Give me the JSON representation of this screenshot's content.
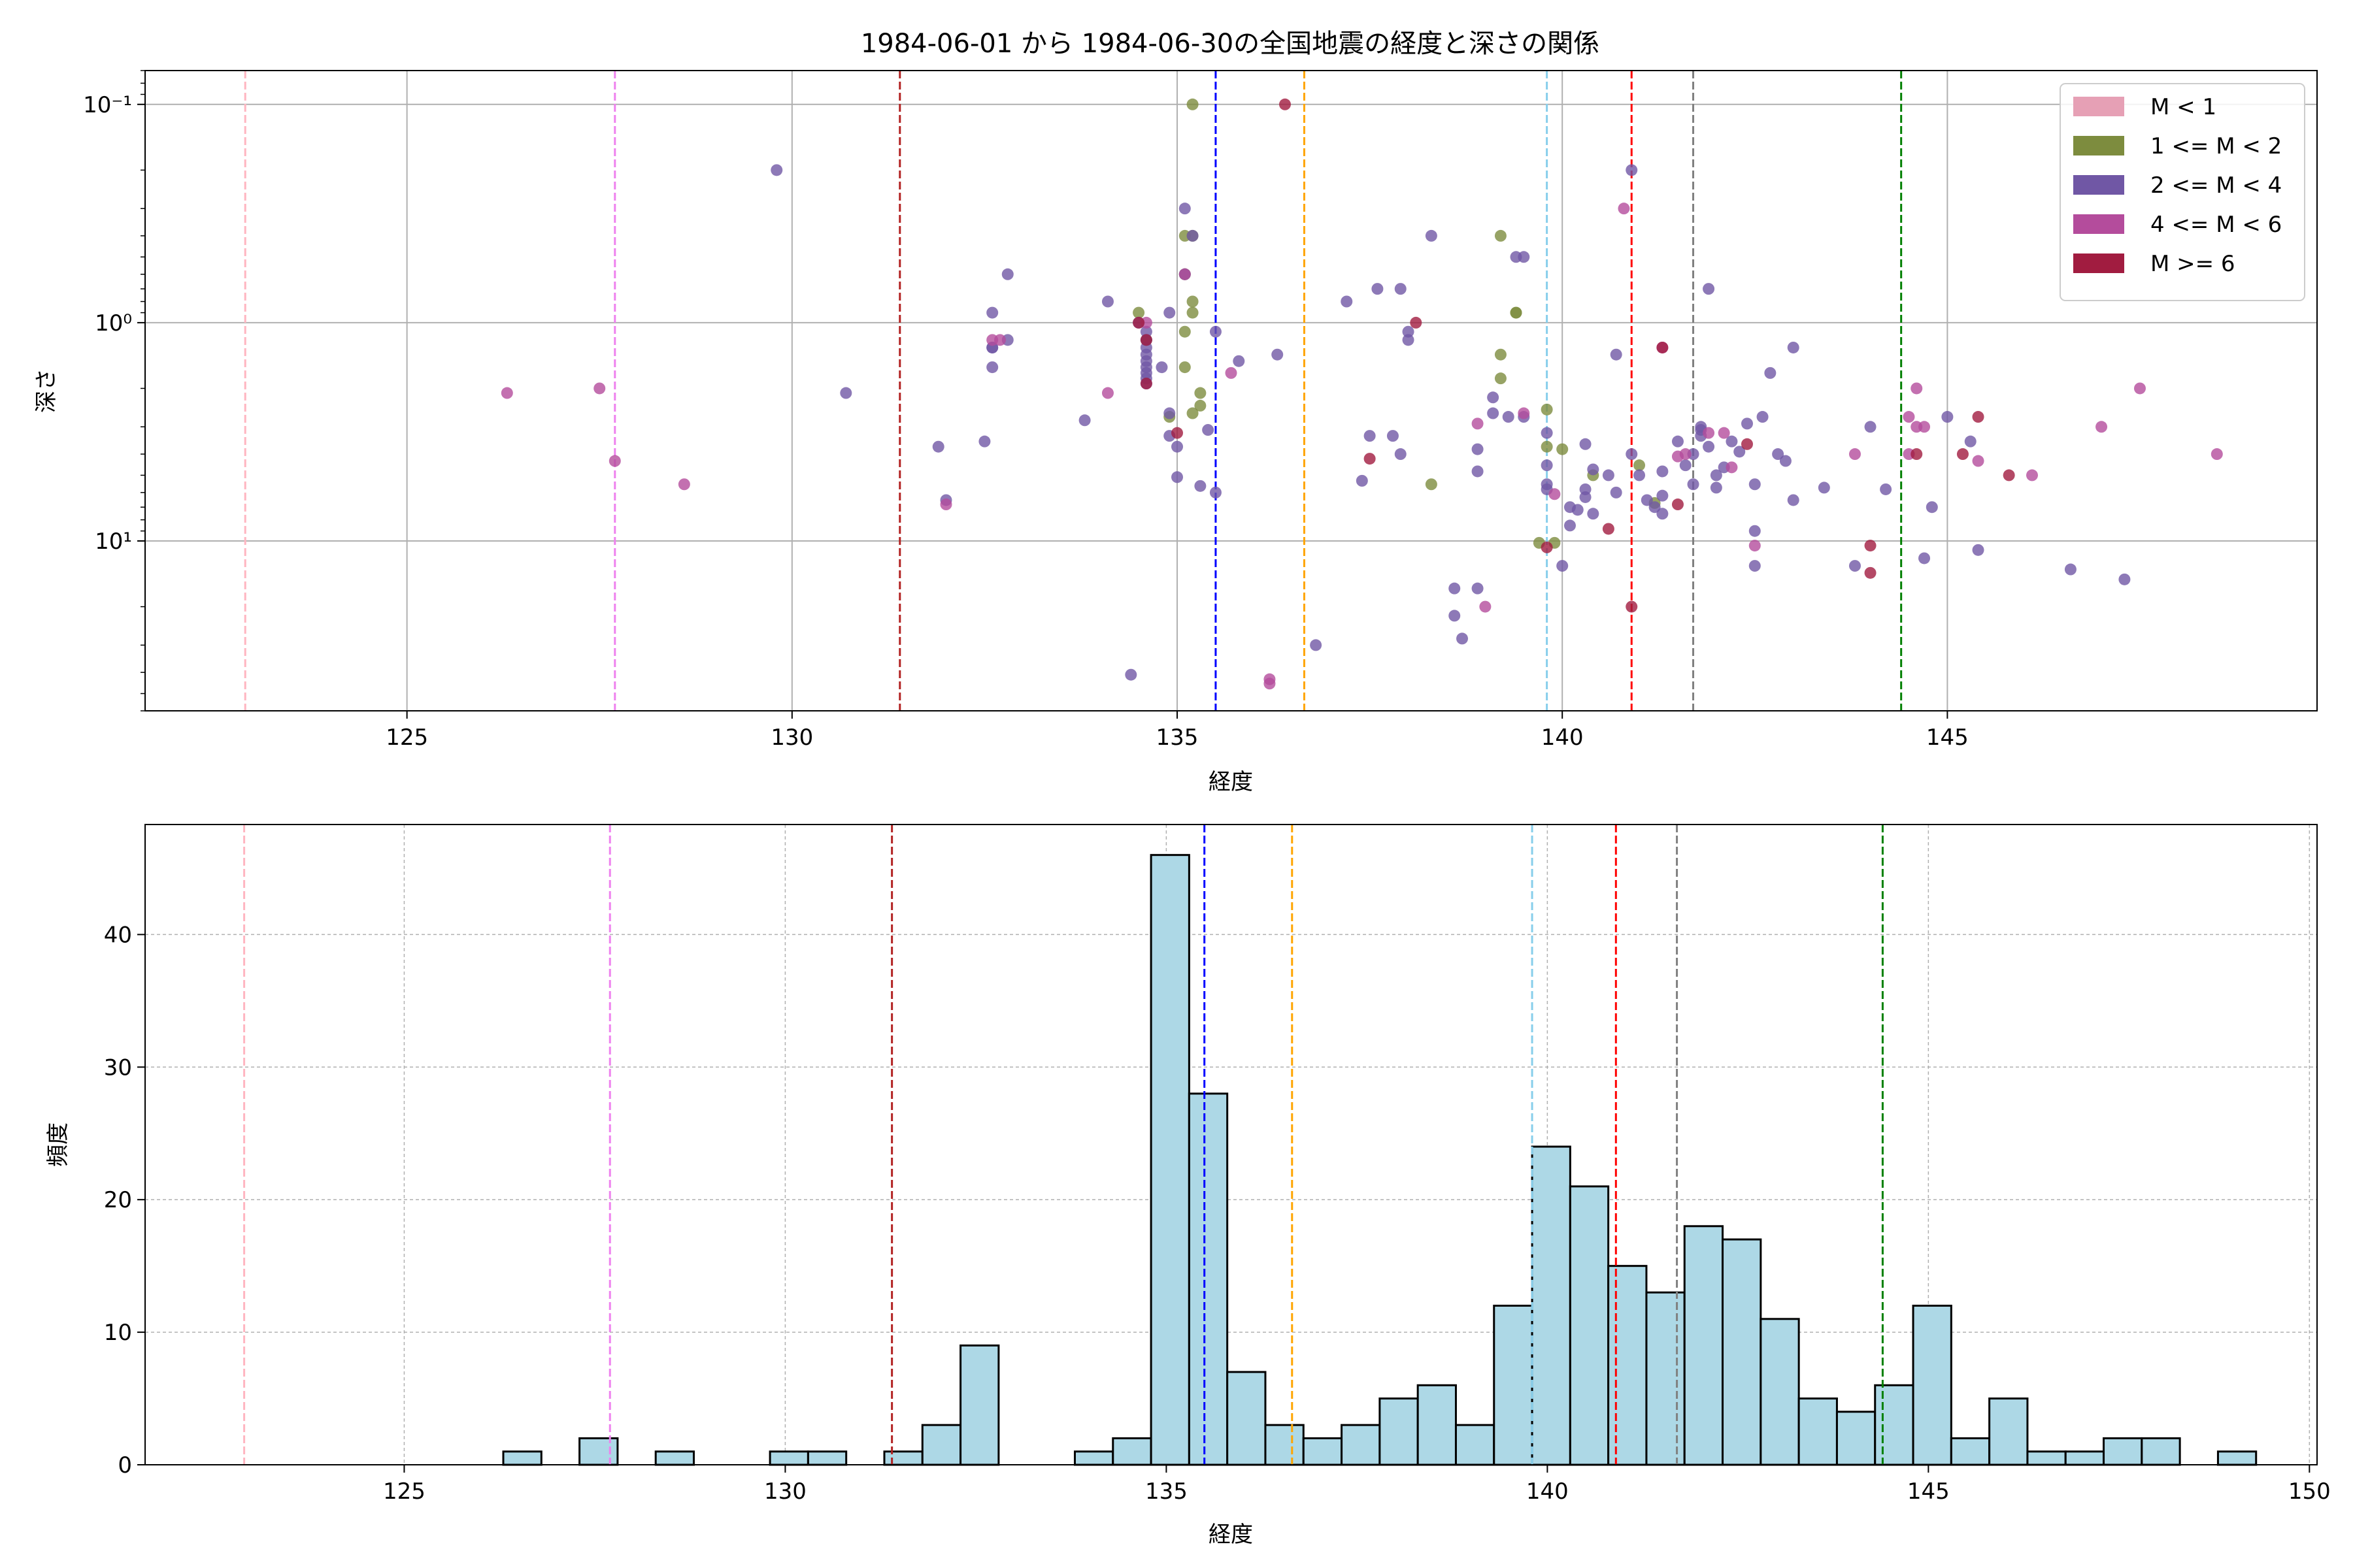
{
  "chart_data": [
    {
      "type": "scatter",
      "title": "1984-06-01 から 1984-06-30の全国地震の経度と深さの関係",
      "xlabel": "経度",
      "ylabel": "深さ",
      "xlim": [
        121.6,
        149.8
      ],
      "ylim": [
        60,
        0.07
      ],
      "yscale": "log",
      "yaxis_inverted": true,
      "xticks": [
        125,
        130,
        135,
        140,
        145
      ],
      "yticks": [
        {
          "value": 0.1,
          "label": "10⁻¹"
        },
        {
          "value": 1,
          "label": "10⁰"
        },
        {
          "value": 10,
          "label": "10¹"
        }
      ],
      "grid": true,
      "legend_position": "top-right",
      "legend": [
        {
          "label": "M < 1",
          "color": "#e6a0b5"
        },
        {
          "label": "1 <= M < 2",
          "color": "#7d8c3e"
        },
        {
          "label": "2 <= M < 4",
          "color": "#7057a5"
        },
        {
          "label": "4 <= M < 6",
          "color": "#b44c9c"
        },
        {
          "label": "M >= 6",
          "color": "#a11c40"
        }
      ],
      "vlines": [
        {
          "x": 122.9,
          "color": "#ffb6c1"
        },
        {
          "x": 127.7,
          "color": "#ee82ee"
        },
        {
          "x": 131.4,
          "color": "#b22222"
        },
        {
          "x": 135.5,
          "color": "#0000ff"
        },
        {
          "x": 136.65,
          "color": "#ffa500"
        },
        {
          "x": 139.8,
          "color": "#87ceeb"
        },
        {
          "x": 140.9,
          "color": "#ff0000"
        },
        {
          "x": 141.7,
          "color": "#808080"
        },
        {
          "x": 144.4,
          "color": "#008000"
        }
      ],
      "series": [
        {
          "name": "1 <= M < 2",
          "color": "#7d8c3e",
          "points": [
            [
              135.2,
              0.1
            ],
            [
              135.1,
              0.4
            ],
            [
              135.2,
              0.4
            ],
            [
              135.1,
              0.6
            ],
            [
              135.1,
              0.6
            ],
            [
              135.2,
              0.8
            ],
            [
              135.2,
              0.9
            ],
            [
              135.1,
              1.1
            ],
            [
              134.5,
              0.9
            ],
            [
              134.6,
              1.2
            ],
            [
              135.1,
              1.6
            ],
            [
              135.3,
              2.1
            ],
            [
              135.3,
              2.4
            ],
            [
              135.2,
              2.6
            ],
            [
              134.9,
              2.7
            ],
            [
              139.2,
              0.4
            ],
            [
              139.2,
              1.4
            ],
            [
              139.2,
              1.8
            ],
            [
              139.4,
              0.9
            ],
            [
              139.4,
              0.9
            ],
            [
              139.8,
              2.5
            ],
            [
              139.8,
              3.7
            ],
            [
              140.0,
              3.8
            ],
            [
              140.4,
              5.0
            ],
            [
              138.3,
              5.5
            ],
            [
              141.0,
              4.5
            ],
            [
              141.2,
              6.7
            ],
            [
              139.7,
              10.2
            ],
            [
              139.9,
              10.2
            ]
          ]
        },
        {
          "name": "2 <= M < 4",
          "color": "#7057a5",
          "points": [
            [
              129.8,
              0.2
            ],
            [
              130.7,
              2.1
            ],
            [
              131.9,
              3.7
            ],
            [
              132.0,
              6.5
            ],
            [
              132.5,
              3.5
            ],
            [
              132.6,
              0.9
            ],
            [
              132.6,
              1.3
            ],
            [
              132.6,
              1.3
            ],
            [
              132.6,
              1.6
            ],
            [
              132.8,
              0.6
            ],
            [
              132.8,
              1.2
            ],
            [
              133.8,
              2.8
            ],
            [
              134.1,
              0.8
            ],
            [
              134.5,
              1.0
            ],
            [
              134.6,
              1.1
            ],
            [
              134.6,
              1.2
            ],
            [
              134.6,
              1.3
            ],
            [
              134.6,
              1.4
            ],
            [
              134.6,
              1.5
            ],
            [
              134.6,
              1.6
            ],
            [
              134.6,
              1.7
            ],
            [
              134.6,
              1.8
            ],
            [
              134.6,
              1.9
            ],
            [
              134.4,
              41.0
            ],
            [
              134.8,
              1.6
            ],
            [
              134.9,
              0.9
            ],
            [
              134.9,
              2.6
            ],
            [
              135.0,
              3.7
            ],
            [
              134.9,
              3.3
            ],
            [
              135.0,
              5.1
            ],
            [
              135.1,
              0.3
            ],
            [
              135.1,
              0.6
            ],
            [
              135.2,
              0.4
            ],
            [
              135.3,
              5.6
            ],
            [
              135.4,
              3.1
            ],
            [
              135.5,
              1.1
            ],
            [
              135.5,
              6.0
            ],
            [
              135.8,
              1.5
            ],
            [
              136.3,
              1.4
            ],
            [
              136.8,
              30.0
            ],
            [
              137.2,
              0.8
            ],
            [
              137.4,
              5.3
            ],
            [
              137.5,
              3.3
            ],
            [
              137.6,
              0.7
            ],
            [
              137.8,
              3.3
            ],
            [
              137.9,
              0.7
            ],
            [
              137.9,
              4.0
            ],
            [
              138.0,
              1.1
            ],
            [
              138.0,
              1.2
            ],
            [
              138.3,
              0.4
            ],
            [
              138.6,
              16.5
            ],
            [
              138.6,
              22.0
            ],
            [
              138.7,
              28.0
            ],
            [
              138.9,
              3.8
            ],
            [
              138.9,
              4.8
            ],
            [
              138.9,
              16.5
            ],
            [
              139.1,
              2.2
            ],
            [
              139.1,
              2.6
            ],
            [
              139.3,
              2.7
            ],
            [
              139.4,
              0.5
            ],
            [
              139.5,
              0.5
            ],
            [
              139.5,
              2.7
            ],
            [
              139.8,
              3.2
            ],
            [
              139.8,
              4.5
            ],
            [
              139.8,
              5.5
            ],
            [
              139.8,
              5.8
            ],
            [
              140.0,
              13.0
            ],
            [
              140.1,
              7.0
            ],
            [
              140.1,
              8.5
            ],
            [
              140.2,
              7.2
            ],
            [
              140.3,
              3.6
            ],
            [
              140.3,
              5.8
            ],
            [
              140.3,
              6.3
            ],
            [
              140.4,
              4.7
            ],
            [
              140.4,
              7.5
            ],
            [
              140.6,
              5.0
            ],
            [
              140.7,
              6.0
            ],
            [
              140.7,
              1.4
            ],
            [
              140.9,
              0.2
            ],
            [
              140.9,
              4.0
            ],
            [
              141.0,
              5.0
            ],
            [
              141.1,
              6.5
            ],
            [
              141.2,
              7.0
            ],
            [
              141.3,
              4.8
            ],
            [
              141.3,
              6.2
            ],
            [
              141.3,
              7.5
            ],
            [
              141.5,
              3.5
            ],
            [
              141.6,
              4.5
            ],
            [
              141.7,
              4.0
            ],
            [
              141.7,
              5.5
            ],
            [
              141.8,
              3.3
            ],
            [
              141.8,
              3.1
            ],
            [
              141.8,
              3.0
            ],
            [
              141.9,
              0.7
            ],
            [
              141.9,
              3.7
            ],
            [
              142.0,
              5.0
            ],
            [
              142.0,
              5.7
            ],
            [
              142.1,
              4.6
            ],
            [
              142.2,
              3.5
            ],
            [
              142.3,
              3.9
            ],
            [
              142.4,
              2.9
            ],
            [
              142.5,
              5.5
            ],
            [
              142.5,
              9.0
            ],
            [
              142.5,
              13.0
            ],
            [
              142.6,
              2.7
            ],
            [
              142.7,
              1.7
            ],
            [
              142.8,
              4.0
            ],
            [
              142.9,
              4.3
            ],
            [
              143.0,
              1.3
            ],
            [
              143.0,
              6.5
            ],
            [
              143.4,
              5.7
            ],
            [
              143.8,
              13.0
            ],
            [
              144.0,
              3.0
            ],
            [
              144.2,
              5.8
            ],
            [
              144.7,
              12.0
            ],
            [
              144.8,
              7.0
            ],
            [
              145.0,
              2.7
            ],
            [
              145.3,
              3.5
            ],
            [
              145.4,
              11.0
            ],
            [
              146.6,
              13.5
            ],
            [
              147.3,
              15.0
            ]
          ]
        },
        {
          "name": "4 <= M < 6",
          "color": "#b44c9c",
          "points": [
            [
              126.3,
              2.1
            ],
            [
              127.5,
              2.0
            ],
            [
              127.7,
              4.3
            ],
            [
              128.6,
              5.5
            ],
            [
              132.0,
              6.8
            ],
            [
              132.6,
              1.2
            ],
            [
              132.7,
              1.2
            ],
            [
              134.1,
              2.1
            ],
            [
              134.6,
              1.0
            ],
            [
              135.1,
              0.6
            ],
            [
              135.7,
              1.7
            ],
            [
              136.2,
              45.0
            ],
            [
              136.2,
              43.0
            ],
            [
              138.9,
              2.9
            ],
            [
              139.0,
              20.0
            ],
            [
              139.5,
              2.6
            ],
            [
              139.9,
              6.1
            ],
            [
              140.8,
              0.3
            ],
            [
              141.3,
              1.3
            ],
            [
              141.5,
              4.1
            ],
            [
              141.6,
              4.0
            ],
            [
              141.9,
              3.2
            ],
            [
              142.1,
              3.2
            ],
            [
              142.2,
              4.6
            ],
            [
              142.5,
              10.5
            ],
            [
              143.8,
              4.0
            ],
            [
              144.5,
              2.7
            ],
            [
              144.5,
              4.0
            ],
            [
              144.6,
              2.0
            ],
            [
              144.6,
              3.0
            ],
            [
              144.7,
              3.0
            ],
            [
              145.4,
              4.3
            ],
            [
              146.1,
              5.0
            ],
            [
              147.0,
              3.0
            ],
            [
              147.5,
              2.0
            ],
            [
              148.5,
              4.0
            ]
          ]
        },
        {
          "name": "M >= 6",
          "color": "#a11c40",
          "points": [
            [
              136.4,
              0.1
            ],
            [
              138.1,
              1.0
            ],
            [
              134.5,
              1.0
            ],
            [
              134.6,
              1.2
            ],
            [
              134.6,
              1.9
            ],
            [
              135.0,
              3.2
            ],
            [
              137.5,
              4.2
            ],
            [
              139.8,
              10.7
            ],
            [
              140.6,
              8.8
            ],
            [
              140.9,
              20.0
            ],
            [
              141.3,
              1.3
            ],
            [
              141.5,
              6.8
            ],
            [
              142.4,
              3.6
            ],
            [
              144.0,
              10.5
            ],
            [
              144.0,
              14.0
            ],
            [
              144.6,
              4.0
            ],
            [
              145.4,
              2.7
            ],
            [
              145.2,
              4.0
            ],
            [
              145.8,
              5.0
            ]
          ]
        }
      ]
    },
    {
      "type": "histogram",
      "xlabel": "経度",
      "ylabel": "頻度",
      "xlim": [
        121.6,
        150.1
      ],
      "ylim": [
        0,
        48.3
      ],
      "xticks": [
        125,
        130,
        135,
        140,
        145,
        150
      ],
      "yticks": [
        0,
        10,
        20,
        30,
        40
      ],
      "grid": true,
      "bar_color": "#add8e6",
      "bin_start": 126.3,
      "bin_width": 0.5,
      "values": [
        1,
        0,
        2,
        0,
        1,
        0,
        0,
        1,
        1,
        0,
        1,
        3,
        9,
        0,
        0,
        1,
        2,
        46,
        28,
        7,
        3,
        2,
        3,
        5,
        6,
        3,
        12,
        24,
        21,
        15,
        13,
        18,
        17,
        11,
        5,
        4,
        6,
        12,
        2,
        5,
        1,
        1,
        2,
        2,
        0,
        1
      ],
      "vlines": [
        {
          "x": 122.9,
          "color": "#ffb6c1"
        },
        {
          "x": 127.7,
          "color": "#ee82ee"
        },
        {
          "x": 131.4,
          "color": "#b22222"
        },
        {
          "x": 135.5,
          "color": "#0000ff"
        },
        {
          "x": 136.65,
          "color": "#ffa500"
        },
        {
          "x": 139.8,
          "color": "#87ceeb"
        },
        {
          "x": 140.9,
          "color": "#ff0000"
        },
        {
          "x": 141.7,
          "color": "#808080"
        },
        {
          "x": 144.4,
          "color": "#008000"
        }
      ]
    }
  ]
}
